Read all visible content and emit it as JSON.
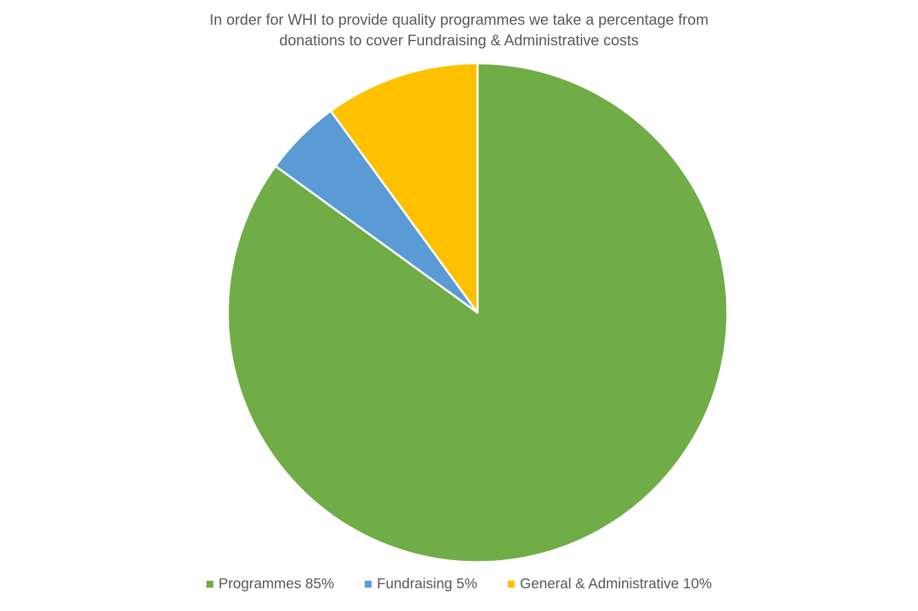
{
  "chart_data": {
    "type": "pie",
    "title_lines": [
      "In order for WHI to provide quality programmes we take a percentage from",
      "donations to cover Fundraising & Administrative costs"
    ],
    "slices": [
      {
        "label": "Programmes 85%",
        "value": 85,
        "color": "#70AD47"
      },
      {
        "label": "Fundraising 5%",
        "value": 5,
        "color": "#5B9BD5"
      },
      {
        "label": "General & Administrative 10%",
        "value": 10,
        "color": "#FFC000"
      }
    ],
    "legend_position": "bottom"
  }
}
